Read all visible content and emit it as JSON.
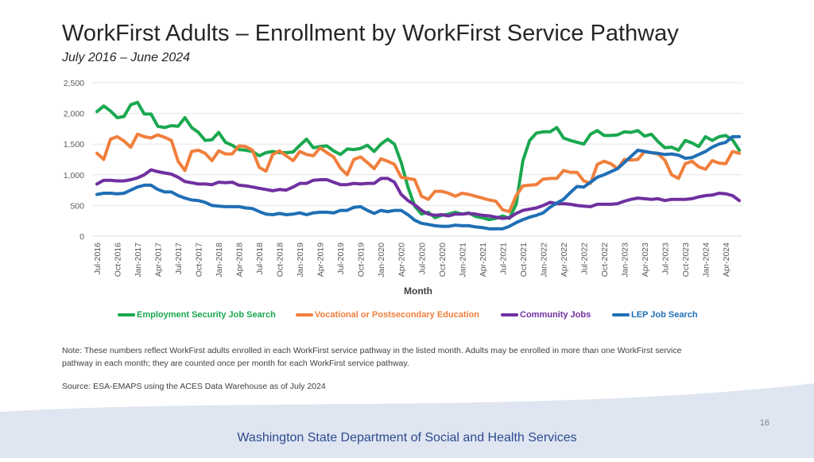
{
  "title": "WorkFirst Adults – Enrollment by WorkFirst Service Pathway",
  "subtitle": "July 2016 – June 2024",
  "note": "Note: These numbers reflect WorkFirst adults enrolled in each WorkFirst service pathway in the listed month. Adults may be enrolled in more than one WorkFirst service pathway in each month; they are counted once per month for each WorkFirst service pathway.",
  "source": "Source: ESA-EMAPS using the ACES Data Warehouse as of July 2024",
  "page_number": "16",
  "department": "Washington State Department of Social and Health Services",
  "colors": {
    "employment": "#1aa84f",
    "vocational": "#f07f3c",
    "community": "#7030a0",
    "lep": "#1f6fb5",
    "footer_band": "#dfe6f1"
  },
  "chart_data": {
    "type": "line",
    "title": "",
    "xlabel": "Month",
    "ylabel": "",
    "ylim": [
      0,
      2500
    ],
    "yticks": [
      "0",
      "500",
      "1,000",
      "1,500",
      "2,000",
      "2,500"
    ],
    "ytick_values": [
      0,
      500,
      1000,
      1500,
      2000,
      2500
    ],
    "grid": true,
    "legend_position": "bottom",
    "x": [
      "Jul-2016",
      "Aug-2016",
      "Sep-2016",
      "Oct-2016",
      "Nov-2016",
      "Dec-2016",
      "Jan-2017",
      "Feb-2017",
      "Mar-2017",
      "Apr-2017",
      "May-2017",
      "Jun-2017",
      "Jul-2017",
      "Aug-2017",
      "Sep-2017",
      "Oct-2017",
      "Nov-2017",
      "Dec-2017",
      "Jan-2018",
      "Feb-2018",
      "Mar-2018",
      "Apr-2018",
      "May-2018",
      "Jun-2018",
      "Jul-2018",
      "Aug-2018",
      "Sep-2018",
      "Oct-2018",
      "Nov-2018",
      "Dec-2018",
      "Jan-2019",
      "Feb-2019",
      "Mar-2019",
      "Apr-2019",
      "May-2019",
      "Jun-2019",
      "Jul-2019",
      "Aug-2019",
      "Sep-2019",
      "Oct-2019",
      "Nov-2019",
      "Dec-2019",
      "Jan-2020",
      "Feb-2020",
      "Mar-2020",
      "Apr-2020",
      "May-2020",
      "Jun-2020",
      "Jul-2020",
      "Aug-2020",
      "Sep-2020",
      "Oct-2020",
      "Nov-2020",
      "Dec-2020",
      "Jan-2021",
      "Feb-2021",
      "Mar-2021",
      "Apr-2021",
      "May-2021",
      "Jun-2021",
      "Jul-2021",
      "Aug-2021",
      "Sep-2021",
      "Oct-2021",
      "Nov-2021",
      "Dec-2021",
      "Jan-2022",
      "Feb-2022",
      "Mar-2022",
      "Apr-2022",
      "May-2022",
      "Jun-2022",
      "Jul-2022",
      "Aug-2022",
      "Sep-2022",
      "Oct-2022",
      "Nov-2022",
      "Dec-2022",
      "Jan-2023",
      "Feb-2023",
      "Mar-2023",
      "Apr-2023",
      "May-2023",
      "Jun-2023",
      "Jul-2023",
      "Aug-2023",
      "Sep-2023",
      "Oct-2023",
      "Nov-2023",
      "Dec-2023",
      "Jan-2024",
      "Feb-2024",
      "Mar-2024",
      "Apr-2024",
      "May-2024",
      "Jun-2024"
    ],
    "xtick_labels": [
      "Jul-2016",
      "Oct-2016",
      "Jan-2017",
      "Apr-2017",
      "Jul-2017",
      "Oct-2017",
      "Jan-2018",
      "Apr-2018",
      "Jul-2018",
      "Oct-2018",
      "Jan-2019",
      "Apr-2019",
      "Jul-2019",
      "Oct-2019",
      "Jan-2020",
      "Apr-2020",
      "Jul-2020",
      "Oct-2020",
      "Jan-2021",
      "Apr-2021",
      "Jul-2021",
      "Oct-2021",
      "Jan-2022",
      "Apr-2022",
      "Jul-2022",
      "Oct-2022",
      "Jan-2023",
      "Apr-2023",
      "Jul-2023",
      "Oct-2023",
      "Jan-2024",
      "Apr-2024"
    ],
    "series": [
      {
        "name": "Employment Security Job Search",
        "color_key": "employment",
        "values": [
          2030,
          2120,
          2040,
          1930,
          1950,
          2140,
          2180,
          1990,
          1990,
          1790,
          1770,
          1800,
          1790,
          1930,
          1770,
          1690,
          1560,
          1570,
          1690,
          1530,
          1480,
          1410,
          1400,
          1380,
          1310,
          1360,
          1380,
          1360,
          1360,
          1370,
          1480,
          1580,
          1440,
          1460,
          1470,
          1390,
          1330,
          1420,
          1410,
          1430,
          1480,
          1380,
          1500,
          1580,
          1500,
          1200,
          800,
          490,
          360,
          390,
          300,
          340,
          360,
          390,
          360,
          380,
          320,
          300,
          270,
          290,
          330,
          290,
          520,
          1230,
          1560,
          1680,
          1700,
          1700,
          1770,
          1600,
          1560,
          1530,
          1500,
          1660,
          1720,
          1640,
          1640,
          1650,
          1700,
          1690,
          1720,
          1630,
          1660,
          1540,
          1440,
          1450,
          1400,
          1560,
          1520,
          1460,
          1620,
          1560,
          1620,
          1640,
          1570,
          1400
        ]
      },
      {
        "name": "Vocational or Postsecondary Education",
        "color_key": "vocational",
        "values": [
          1350,
          1250,
          1580,
          1620,
          1550,
          1450,
          1660,
          1620,
          1600,
          1650,
          1610,
          1560,
          1220,
          1070,
          1380,
          1400,
          1350,
          1230,
          1390,
          1340,
          1340,
          1470,
          1460,
          1400,
          1120,
          1060,
          1330,
          1390,
          1310,
          1230,
          1380,
          1330,
          1310,
          1440,
          1360,
          1290,
          1110,
          1000,
          1250,
          1290,
          1200,
          1100,
          1260,
          1220,
          1170,
          960,
          940,
          920,
          650,
          600,
          730,
          730,
          700,
          650,
          700,
          680,
          650,
          620,
          590,
          570,
          430,
          400,
          660,
          820,
          830,
          840,
          930,
          940,
          940,
          1070,
          1040,
          1040,
          900,
          860,
          1170,
          1220,
          1180,
          1100,
          1250,
          1240,
          1250,
          1380,
          1360,
          1340,
          1240,
          1000,
          940,
          1180,
          1220,
          1130,
          1090,
          1230,
          1190,
          1180,
          1380,
          1350
        ]
      },
      {
        "name": "Community Jobs",
        "color_key": "community",
        "values": [
          850,
          910,
          910,
          900,
          900,
          920,
          950,
          1000,
          1080,
          1050,
          1030,
          1010,
          960,
          890,
          870,
          850,
          850,
          840,
          880,
          870,
          880,
          830,
          820,
          800,
          780,
          760,
          740,
          760,
          750,
          800,
          860,
          860,
          910,
          920,
          920,
          880,
          840,
          840,
          860,
          850,
          860,
          860,
          940,
          940,
          880,
          680,
          580,
          510,
          420,
          360,
          340,
          350,
          330,
          360,
          360,
          370,
          360,
          340,
          330,
          310,
          290,
          300,
          370,
          420,
          440,
          460,
          500,
          550,
          530,
          530,
          520,
          500,
          490,
          480,
          520,
          520,
          520,
          530,
          570,
          600,
          620,
          610,
          600,
          610,
          580,
          600,
          600,
          600,
          610,
          640,
          660,
          670,
          700,
          690,
          660,
          580
        ]
      },
      {
        "name": "LEP Job Search",
        "color_key": "lep",
        "values": [
          680,
          700,
          700,
          690,
          700,
          750,
          800,
          830,
          830,
          760,
          720,
          720,
          660,
          620,
          590,
          580,
          550,
          500,
          490,
          480,
          480,
          480,
          460,
          450,
          400,
          360,
          350,
          370,
          350,
          360,
          380,
          350,
          380,
          390,
          390,
          380,
          420,
          420,
          470,
          480,
          420,
          370,
          420,
          400,
          420,
          420,
          350,
          260,
          210,
          190,
          170,
          160,
          160,
          180,
          170,
          170,
          150,
          140,
          120,
          120,
          120,
          160,
          220,
          270,
          310,
          340,
          380,
          470,
          540,
          600,
          710,
          810,
          800,
          880,
          960,
          1000,
          1050,
          1100,
          1200,
          1300,
          1400,
          1380,
          1360,
          1350,
          1330,
          1340,
          1320,
          1270,
          1280,
          1330,
          1380,
          1450,
          1500,
          1530,
          1620,
          1620
        ]
      }
    ]
  }
}
